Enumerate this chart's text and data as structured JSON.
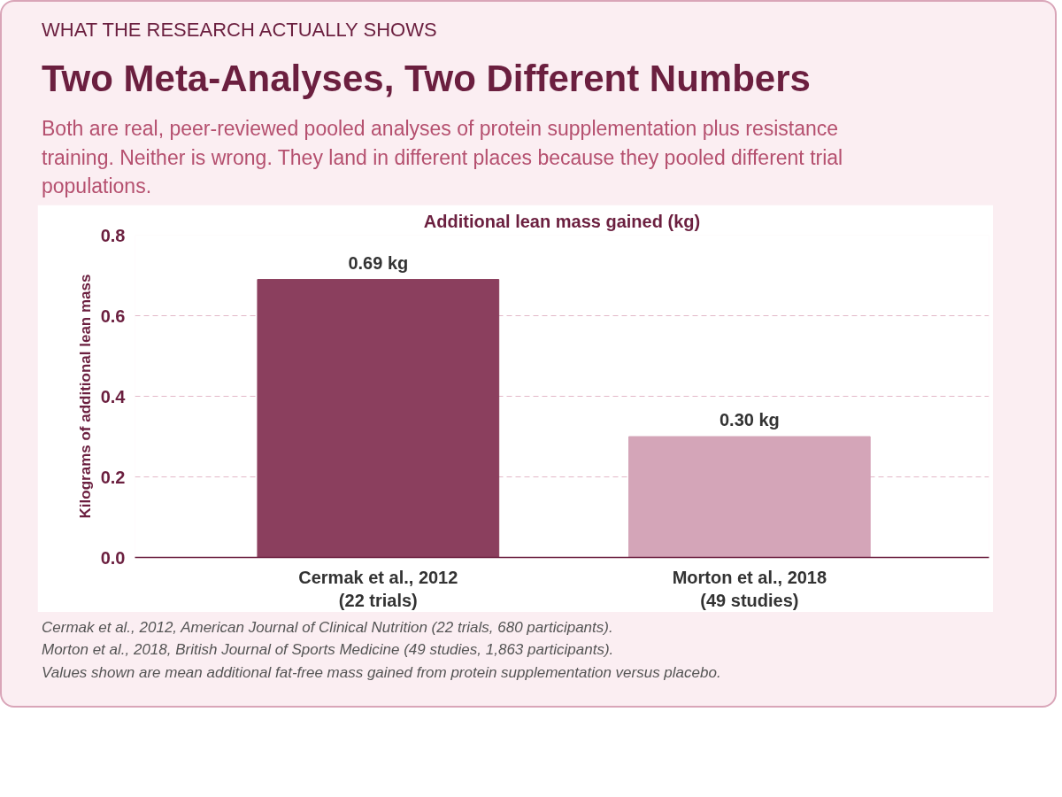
{
  "chart_data": {
    "type": "bar",
    "title": "Two Meta-Analyses, Two Different Numbers",
    "subtitle": "Both are real, peer-reviewed pooled analyses of protein supplementation plus resistance training. Neither is wrong. They land in different places because they pooled different trial populations.",
    "ylabel": "Kilograms of additional lean mass",
    "annotations": [
      "WHAT THE RESEARCH ACTUALLY SHOWS",
      "Additional lean mass gained (kg)",
      "Cermak et al., 2012, American Journal of Clinical Nutrition (22 trials, 680 participants).",
      "Morton et al., 2018, British Journal of Sports Medicine (49 studies, 1,863 participants).",
      "Values shown are mean additional fat-free mass gained from protein supplementation versus placebo."
    ],
    "categories": [
      "Cermak et al., 2012\n(22 trials)",
      "Morton et al., 2018\n(49 studies)"
    ],
    "values": [
      0.69,
      0.3
    ],
    "colors": [
      "#8b3f5e",
      "#d4a5b8"
    ],
    "value_labels": [
      "0.69 kg",
      "0.30 kg"
    ],
    "ylim": [
      0,
      0.8
    ],
    "yticks": [
      {
        "value": 0,
        "label": "0.0"
      },
      0.2,
      0.4,
      0.6,
      0.8
    ],
    "grid": "y"
  }
}
